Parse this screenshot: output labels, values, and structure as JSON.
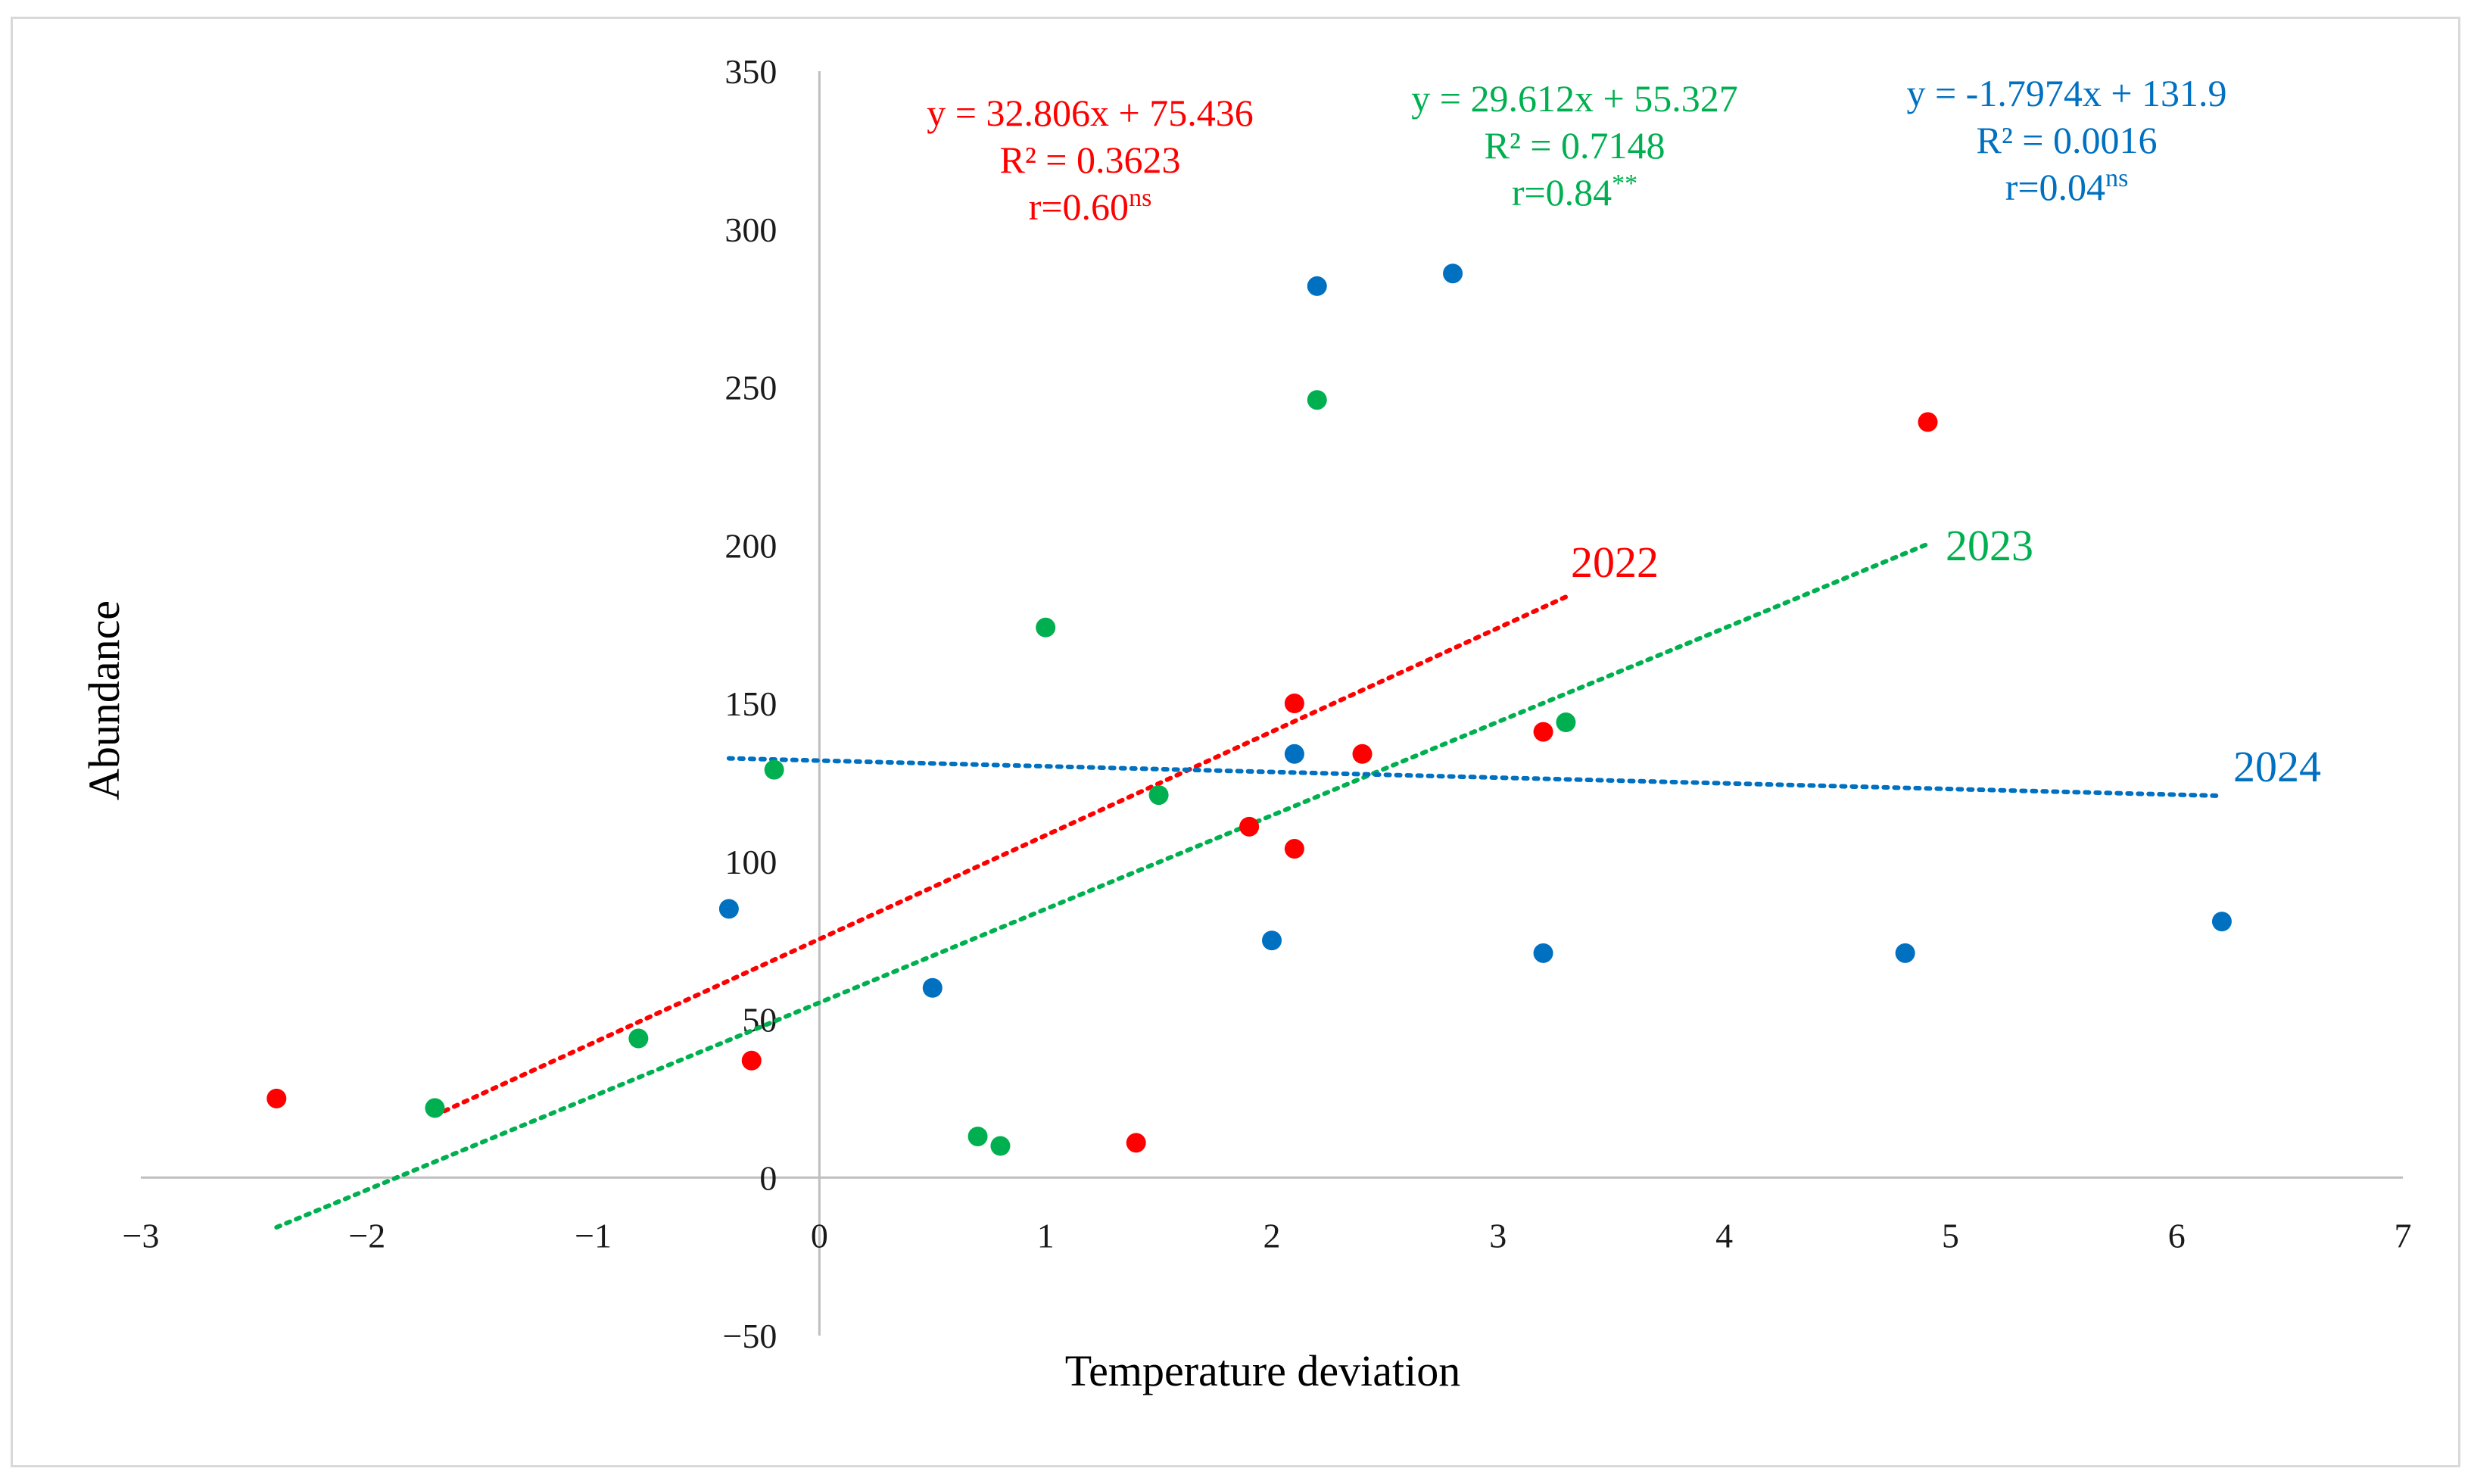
{
  "chart_data": {
    "type": "scatter",
    "title": "",
    "xlabel": "Temperature deviation",
    "ylabel": "Abundance",
    "xlim": [
      -3,
      7
    ],
    "ylim": [
      -50,
      350
    ],
    "xticks": [
      -3,
      -2,
      -1,
      0,
      1,
      2,
      3,
      4,
      5,
      6,
      7
    ],
    "yticks": [
      -50,
      0,
      50,
      100,
      150,
      200,
      250,
      300,
      350
    ],
    "xtick_labels": [
      "−3",
      "−2",
      "−1",
      "0",
      "1",
      "2",
      "3",
      "4",
      "5",
      "6",
      "7"
    ],
    "ytick_labels": [
      "−50",
      "0",
      "50",
      "100",
      "150",
      "200",
      "250",
      "300",
      "350"
    ],
    "grid": false,
    "series": [
      {
        "name": "2022",
        "color": "#ff0000",
        "points": [
          [
            -2.4,
            25
          ],
          [
            -0.3,
            37
          ],
          [
            1.4,
            11
          ],
          [
            1.9,
            111
          ],
          [
            2.1,
            104
          ],
          [
            2.1,
            150
          ],
          [
            2.4,
            134
          ],
          [
            3.2,
            141
          ],
          [
            4.9,
            239
          ]
        ],
        "trendline": {
          "x_range": [
            -1.7,
            3.3
          ],
          "slope": 32.806,
          "intercept": 75.436
        },
        "label": "2022",
        "equation_lines": [
          "y = 32.806x + 75.436",
          "R² = 0.3623"
        ],
        "r_text": "r=0.60",
        "r_sup": "ns"
      },
      {
        "name": "2023",
        "color": "#00b050",
        "points": [
          [
            -1.7,
            22
          ],
          [
            -0.8,
            44
          ],
          [
            -0.2,
            129
          ],
          [
            0.7,
            13
          ],
          [
            0.8,
            10
          ],
          [
            1.0,
            174
          ],
          [
            1.5,
            121
          ],
          [
            2.2,
            246
          ],
          [
            3.3,
            144
          ]
        ],
        "trendline": {
          "x_range": [
            -2.4,
            4.9
          ],
          "slope": 29.612,
          "intercept": 55.327
        },
        "label": "2023",
        "equation_lines": [
          "y = 29.612x + 55.327",
          "R² = 0.7148"
        ],
        "r_text": "r=0.84",
        "r_sup": "**"
      },
      {
        "name": "2024",
        "color": "#0070c0",
        "points": [
          [
            -0.4,
            85
          ],
          [
            0.5,
            60
          ],
          [
            2.0,
            75
          ],
          [
            2.1,
            134
          ],
          [
            2.2,
            282
          ],
          [
            2.8,
            286
          ],
          [
            3.2,
            71
          ],
          [
            4.8,
            71
          ],
          [
            6.2,
            81
          ]
        ],
        "trendline": {
          "x_range": [
            -0.4,
            6.2
          ],
          "slope": -1.7974,
          "intercept": 131.9
        },
        "label": "2024",
        "equation_lines": [
          "y = -1.7974x + 131.9",
          "R² = 0.0016"
        ],
        "r_text": "r=0.04",
        "r_sup": "ns"
      }
    ]
  }
}
